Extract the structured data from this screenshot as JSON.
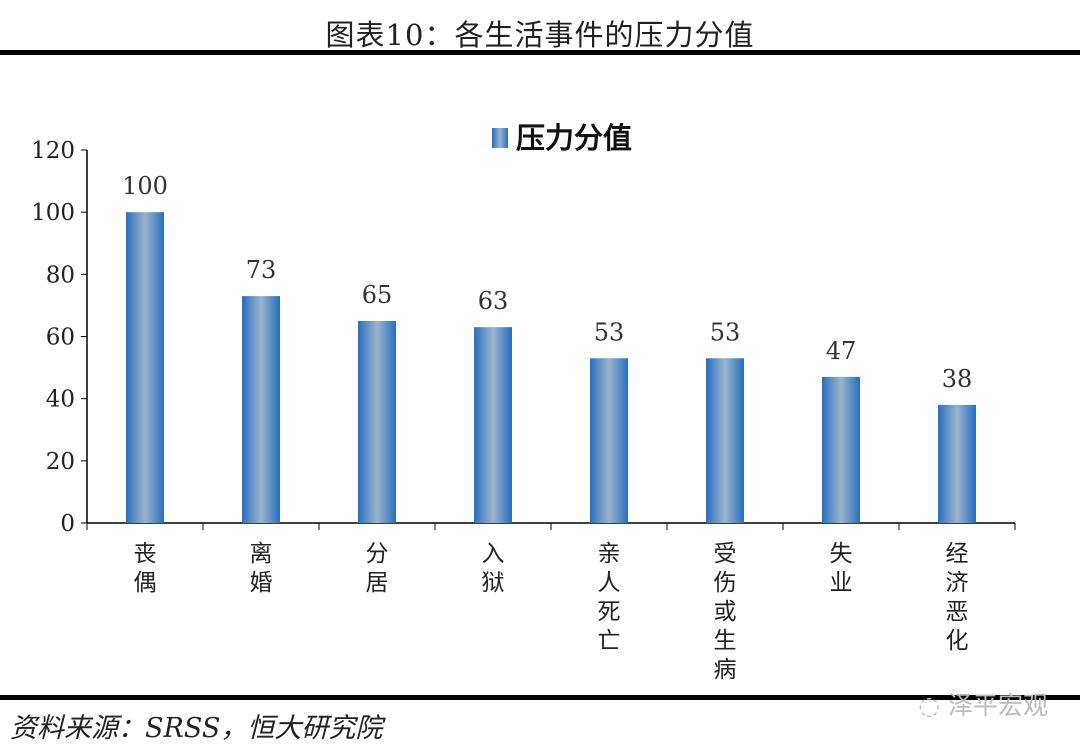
{
  "title": "图表10：各生活事件的压力分值",
  "source": "资料来源：SRSS，恒大研究院",
  "watermark": "泽平宏观",
  "chart_data": {
    "type": "bar",
    "title": "",
    "categories": [
      "丧偶",
      "离婚",
      "分居",
      "入狱",
      "亲人死亡",
      "受伤或生病",
      "失业",
      "经济恶化"
    ],
    "series": [
      {
        "name": "压力分值",
        "values": [
          100,
          73,
          65,
          63,
          53,
          53,
          47,
          38
        ]
      }
    ],
    "ylim": [
      0,
      120
    ],
    "yticks": [
      0,
      20,
      40,
      60,
      80,
      100,
      120
    ],
    "xlabel": "",
    "ylabel": "",
    "grid": false,
    "legend": "top-center",
    "data_labels": true,
    "colors": {
      "bar_edge": "#2a6ebf",
      "bar_center": "#9ab4cc"
    }
  }
}
